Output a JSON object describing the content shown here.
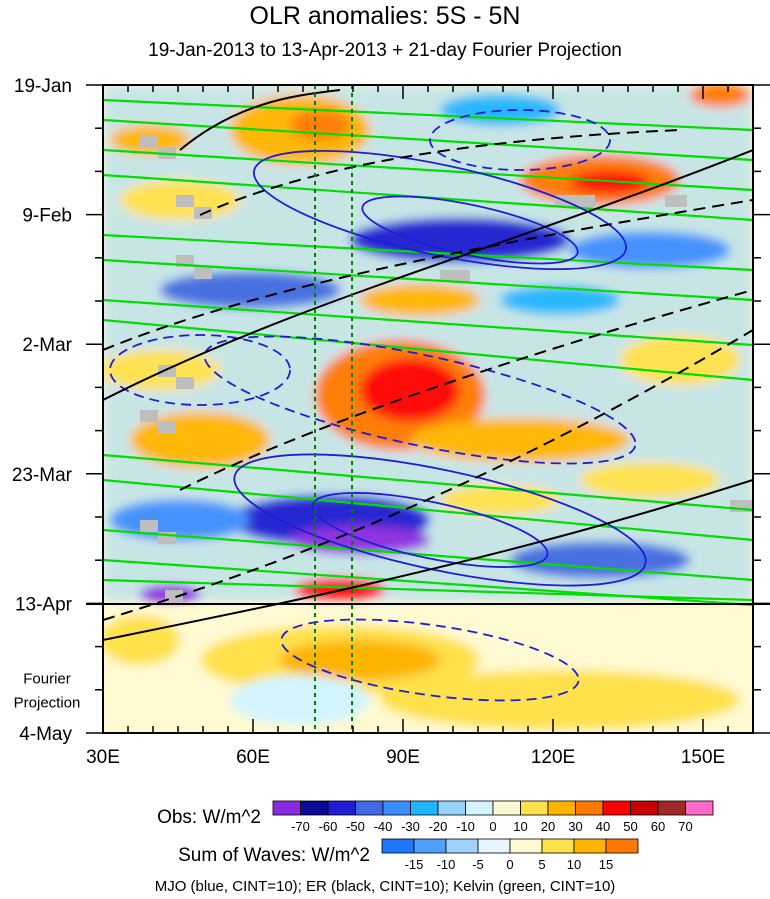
{
  "chart_data": {
    "type": "heatmap",
    "title": "OLR anomalies: 5S - 5N",
    "subtitle": "19-Jan-2013 to 13-Apr-2013 + 21-day Fourier Projection",
    "x_axis": {
      "range": [
        30,
        160
      ],
      "unit": "degrees longitude",
      "ticks": [
        {
          "value": 30,
          "label": "30E"
        },
        {
          "value": 60,
          "label": "60E"
        },
        {
          "value": 90,
          "label": "90E"
        },
        {
          "value": 120,
          "label": "120E"
        },
        {
          "value": 150,
          "label": "150E"
        }
      ]
    },
    "y_axis": {
      "range_days": [
        0,
        105
      ],
      "orientation": "time increases downward",
      "ticks": [
        {
          "day": 0,
          "label": "19-Jan"
        },
        {
          "day": 21,
          "label": "9-Feb"
        },
        {
          "day": 42,
          "label": "2-Mar"
        },
        {
          "day": 63,
          "label": "23-Mar"
        },
        {
          "day": 84,
          "label": "13-Apr"
        },
        {
          "day": 105,
          "label": "4-May"
        }
      ]
    },
    "projection_label_lines": [
      "Fourier",
      "Projection"
    ],
    "projection_start_day": 84,
    "reference_lines_lon": [
      72.5,
      80
    ],
    "obs_colorbar": {
      "label": "Obs: W/m^2",
      "levels": [
        -70,
        -60,
        -50,
        -40,
        -30,
        -20,
        -10,
        0,
        10,
        20,
        30,
        40,
        50,
        60,
        70
      ],
      "colors": [
        "#8a2be2",
        "#0a0a96",
        "#1e1ed2",
        "#4169e1",
        "#3c8cff",
        "#1eb4ff",
        "#96d2fa",
        "#d2f5ff",
        "#fffad2",
        "#ffe14b",
        "#ffb400",
        "#ff7800",
        "#ff0000",
        "#c80000",
        "#a02828",
        "#ff69c8"
      ]
    },
    "waves_colorbar": {
      "label": "Sum of Waves: W/m^2",
      "levels": [
        -15,
        -10,
        -5,
        0,
        5,
        10,
        15
      ],
      "colors": [
        "#1e78ff",
        "#50a0ff",
        "#a0d2ff",
        "#e6f5ff",
        "#fffad2",
        "#ffe14b",
        "#ffb400",
        "#ff7800"
      ]
    },
    "filtered_waves": [
      {
        "name": "MJO",
        "color": "#0000ff",
        "cint": 10
      },
      {
        "name": "ER",
        "color": "#000000",
        "cint": 10
      },
      {
        "name": "Kelvin",
        "color": "#00dd00",
        "cint": 10
      }
    ],
    "footnote": "MJO (blue, CINT=10); ER (black, CINT=10); Kelvin (green, CINT=10)",
    "anomaly_features": [
      {
        "lon": 92,
        "day": 48,
        "value": 55,
        "note": "positive OLR anomaly"
      },
      {
        "lon": 88,
        "day": 74,
        "value": -65,
        "note": "negative OLR anomaly"
      },
      {
        "lon": 125,
        "day": 15,
        "value": 50,
        "note": "positive OLR anomaly"
      },
      {
        "lon": 48,
        "day": 80,
        "value": -70,
        "note": "negative OLR anomaly"
      },
      {
        "lon": 78,
        "day": 92,
        "value": 12,
        "note": "projected positive anomaly"
      }
    ]
  }
}
